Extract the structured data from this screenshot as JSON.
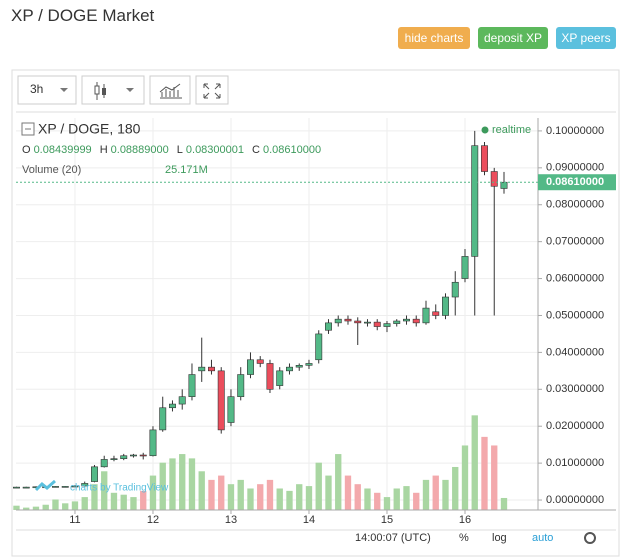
{
  "header": {
    "title": "XP / DOGE Market",
    "buttons": [
      "hide charts",
      "deposit XP",
      "XP peers"
    ]
  },
  "toolbar": {
    "interval": "3h"
  },
  "chart_data": {
    "type": "candlestick",
    "title": "XP / DOGE, 180",
    "status": "realtime",
    "ohlc_legend": [
      {
        "key": "O",
        "label": "0.08439999"
      },
      {
        "key": "H",
        "label": "0.08889000"
      },
      {
        "key": "L",
        "label": "0.08300001"
      },
      {
        "key": "C",
        "label": "0.08610000"
      }
    ],
    "x": [
      10.25,
      10.375,
      10.5,
      10.625,
      10.75,
      10.875,
      11,
      11.125,
      11.25,
      11.375,
      11.5,
      11.625,
      11.75,
      11.875,
      12,
      12.125,
      12.25,
      12.375,
      12.5,
      12.625,
      12.75,
      12.875,
      13,
      13.125,
      13.25,
      13.375,
      13.5,
      13.625,
      13.75,
      13.875,
      14,
      14.125,
      14.25,
      14.375,
      14.5,
      14.625,
      14.75,
      14.875,
      15,
      15.125,
      15.25,
      15.375,
      15.5,
      15.625,
      15.75,
      15.875,
      16,
      16.125,
      16.25,
      16.375,
      16.5
    ],
    "open": [
      0.0035,
      0.0035,
      0.0035,
      0.0036,
      0.0036,
      0.0037,
      0.0037,
      0.0038,
      0.005,
      0.009,
      0.011,
      0.0112,
      0.012,
      0.0122,
      0.012,
      0.019,
      0.025,
      0.026,
      0.028,
      0.035,
      0.036,
      0.035,
      0.021,
      0.028,
      0.034,
      0.038,
      0.037,
      0.031,
      0.035,
      0.036,
      0.0365,
      0.038,
      0.046,
      0.048,
      0.049,
      0.0485,
      0.048,
      0.0482,
      0.047,
      0.0478,
      0.0485,
      0.049,
      0.048,
      0.051,
      0.05,
      0.055,
      0.06,
      0.066,
      0.096,
      0.089,
      0.08439999
    ],
    "high": [
      0.0036,
      0.0036,
      0.0037,
      0.0037,
      0.0038,
      0.0038,
      0.004,
      0.005,
      0.0095,
      0.012,
      0.012,
      0.0125,
      0.0125,
      0.0128,
      0.02,
      0.028,
      0.027,
      0.03,
      0.037,
      0.044,
      0.038,
      0.036,
      0.03,
      0.036,
      0.04,
      0.039,
      0.038,
      0.036,
      0.037,
      0.037,
      0.038,
      0.046,
      0.049,
      0.05,
      0.05,
      0.0495,
      0.049,
      0.049,
      0.0485,
      0.049,
      0.05,
      0.05,
      0.054,
      0.053,
      0.056,
      0.062,
      0.068,
      0.1,
      0.097,
      0.09,
      0.08889
    ],
    "low": [
      0.0034,
      0.0034,
      0.0035,
      0.0035,
      0.0036,
      0.0036,
      0.0036,
      0.0036,
      0.0048,
      0.0088,
      0.0105,
      0.0108,
      0.0115,
      0.011,
      0.0118,
      0.0185,
      0.024,
      0.0245,
      0.027,
      0.032,
      0.034,
      0.018,
      0.02,
      0.027,
      0.033,
      0.036,
      0.029,
      0.03,
      0.034,
      0.035,
      0.0355,
      0.037,
      0.045,
      0.047,
      0.0475,
      0.042,
      0.047,
      0.046,
      0.0455,
      0.047,
      0.0475,
      0.047,
      0.0475,
      0.049,
      0.049,
      0.05,
      0.059,
      0.05,
      0.088,
      0.05,
      0.08300001
    ],
    "close": [
      0.0035,
      0.0035,
      0.0036,
      0.0036,
      0.0037,
      0.0037,
      0.0038,
      0.0045,
      0.009,
      0.011,
      0.0112,
      0.012,
      0.0122,
      0.012,
      0.019,
      0.025,
      0.026,
      0.028,
      0.034,
      0.036,
      0.035,
      0.019,
      0.028,
      0.034,
      0.038,
      0.037,
      0.03,
      0.035,
      0.036,
      0.0365,
      0.037,
      0.045,
      0.048,
      0.049,
      0.0485,
      0.048,
      0.0482,
      0.047,
      0.0478,
      0.0485,
      0.049,
      0.048,
      0.052,
      0.05,
      0.055,
      0.059,
      0.066,
      0.096,
      0.089,
      0.085,
      0.0861
    ],
    "up_color": "#53b987",
    "down_color": "#eb4d5c",
    "volume": {
      "name": "Volume (20)",
      "up_color": "#a9d6a2",
      "down_color": "#f3a9ac",
      "values": [
        9000000,
        5000000,
        7000000,
        11000000,
        22000000,
        14000000,
        18000000,
        27000000,
        54000000,
        81000000,
        36000000,
        32000000,
        27000000,
        40000000,
        72000000,
        99000000,
        108000000,
        117000000,
        108000000,
        81000000,
        63000000,
        72000000,
        54000000,
        63000000,
        45000000,
        54000000,
        63000000,
        45000000,
        40000000,
        54000000,
        50000000,
        99000000,
        72000000,
        117000000,
        72000000,
        54000000,
        45000000,
        36000000,
        27000000,
        45000000,
        50000000,
        36000000,
        63000000,
        72000000,
        63000000,
        90000000,
        135000000,
        198000000,
        153000000,
        135000000,
        25171000
      ],
      "last_label": "25.171M",
      "ylim": [
        0,
        820000000
      ]
    },
    "last_price": {
      "value": 0.0861,
      "label": "0.08610000"
    },
    "xlim": [
      10.244,
      16.936
    ],
    "xticks": [
      11,
      12,
      13,
      14,
      15,
      16
    ],
    "ylim": [
      -0.0027,
      0.1035
    ],
    "yticks": [
      {
        "value": 0,
        "label": "0.00000000"
      },
      {
        "value": 0.01,
        "label": "0.01000000"
      },
      {
        "value": 0.02,
        "label": "0.02000000"
      },
      {
        "value": 0.03,
        "label": "0.03000000"
      },
      {
        "value": 0.04,
        "label": "0.04000000"
      },
      {
        "value": 0.05,
        "label": "0.05000000"
      },
      {
        "value": 0.06,
        "label": "0.06000000"
      },
      {
        "value": 0.07,
        "label": "0.07000000"
      },
      {
        "value": 0.08,
        "label": "0.08000000"
      },
      {
        "value": 0.09,
        "label": "0.09000000"
      },
      {
        "value": 0.1,
        "label": "0.10000000"
      }
    ],
    "grid": true,
    "watermark": "charts by TradingView"
  },
  "footer": {
    "time": "14:00:07 (UTC)",
    "options": [
      "%",
      "log",
      "auto"
    ]
  }
}
